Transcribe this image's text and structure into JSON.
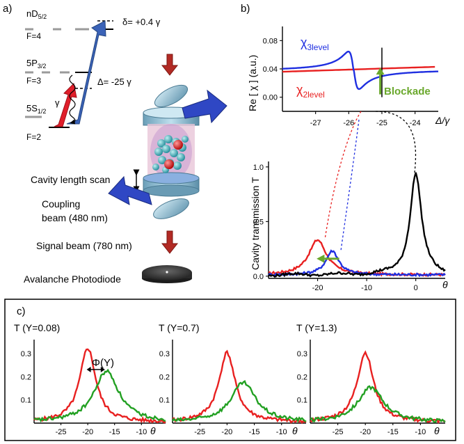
{
  "panel_labels": {
    "a": "a)",
    "b": "b)",
    "c": "c)"
  },
  "panel_a": {
    "levels": {
      "nD_main": "nD",
      "nD_sub": "5/2",
      "F4": "F=4",
      "P_main": "5P",
      "P_sub": "3/2",
      "F3": "F=3",
      "S_main": "5S",
      "S_sub": "1/2",
      "F2": "F=2"
    },
    "delta_small": "δ= +0.4 γ",
    "delta_big": "Δ= -25 γ",
    "gamma": "γ",
    "cavity_scan": "Cavity length scan",
    "coupling_line1": "Coupling",
    "coupling_line2": "beam (480 nm)",
    "signal": "Signal beam (780 nm)",
    "detector": "Avalanche Photodiode",
    "colors": {
      "coupling": "#2f4fb0",
      "signal": "#b22222",
      "probe": "#e02020",
      "mirror": "#7fb0c8"
    }
  },
  "chart_data": [
    {
      "id": "b_top",
      "type": "line",
      "ylabel": "Re [ χ ]  (a.u.)",
      "xlabel": "Δ/γ",
      "xticks": [
        -27,
        -26,
        -25,
        -24
      ],
      "yticks": [
        "0.08",
        "0.04",
        "0.00"
      ],
      "xlim": [
        -28.0,
        -23.3
      ],
      "ylim": [
        -0.02,
        0.1
      ],
      "annotation": "Blockade",
      "series": [
        {
          "name": "χ3level",
          "name_main": "χ",
          "name_sub": "3level",
          "color": "#1f2fe0"
        },
        {
          "name": "χ2level",
          "name_main": "χ",
          "name_sub": "2level",
          "color": "#e82020"
        }
      ]
    },
    {
      "id": "b_bottom",
      "type": "line",
      "ylabel": "Cavity transmission T",
      "xlabel": "θ",
      "xticks": [
        "-20",
        "-10",
        "0"
      ],
      "yticks": [
        "1.0",
        "0.5",
        "0.0"
      ],
      "xlim": [
        -30,
        6
      ],
      "ylim": [
        -0.02,
        1.05
      ],
      "series": [
        {
          "color": "#e82020",
          "peak_x": -20,
          "peak_y": 0.32
        },
        {
          "color": "#1f2fe0",
          "peak_x": -17,
          "peak_y": 0.22
        },
        {
          "color": "#000000",
          "peak_x": 0,
          "peak_y": 0.93
        }
      ]
    },
    {
      "id": "c1",
      "type": "line",
      "title": "T (Y=0.08)",
      "annotation": "Φ(Y)",
      "xlabel": "θ",
      "xticks": [
        "-25",
        "-20",
        "-15",
        "-10"
      ],
      "yticks": [
        "0.3",
        "0.2",
        "0.1"
      ],
      "xlim": [
        -30,
        -5.5
      ],
      "ylim": [
        0,
        0.36
      ],
      "series": [
        {
          "color": "#e82020",
          "peak_x": -20,
          "peak_y": 0.32
        },
        {
          "color": "#22a022",
          "peak_x": -16.5,
          "peak_y": 0.22
        }
      ]
    },
    {
      "id": "c2",
      "type": "line",
      "title": "T (Y=0.7)",
      "xlabel": "θ",
      "xticks": [
        "-25",
        "-20",
        "-15",
        "-10"
      ],
      "yticks": [
        "0.3",
        "0.2",
        "0.1"
      ],
      "xlim": [
        -30,
        -5.5
      ],
      "ylim": [
        0,
        0.36
      ],
      "series": [
        {
          "color": "#e82020",
          "peak_x": -20,
          "peak_y": 0.3
        },
        {
          "color": "#22a022",
          "peak_x": -17,
          "peak_y": 0.17
        }
      ]
    },
    {
      "id": "c3",
      "type": "line",
      "title": "T (Y=1.3)",
      "xlabel": "θ",
      "xticks": [
        "-25",
        "-20",
        "-15",
        "-10"
      ],
      "yticks": [
        "0.3",
        "0.2",
        "0.1"
      ],
      "xlim": [
        -30,
        -5.5
      ],
      "ylim": [
        0,
        0.36
      ],
      "series": [
        {
          "color": "#e82020",
          "peak_x": -20,
          "peak_y": 0.3
        },
        {
          "color": "#22a022",
          "peak_x": -19,
          "peak_y": 0.15
        }
      ]
    }
  ]
}
